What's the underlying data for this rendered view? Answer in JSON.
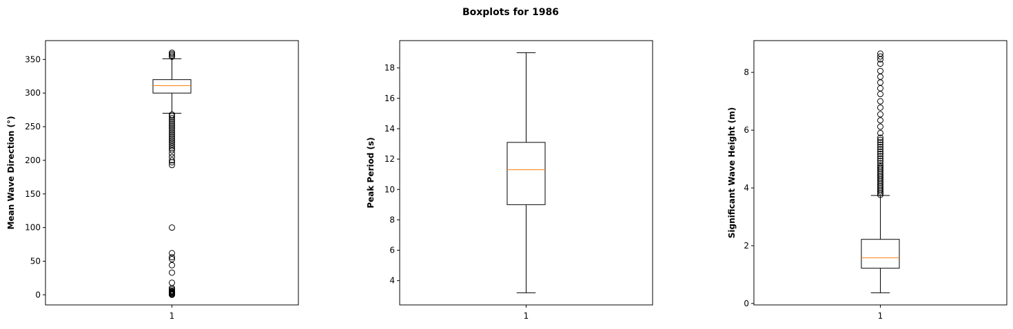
{
  "figure": {
    "title": "Boxplots for 1986"
  },
  "chart_data": [
    {
      "type": "boxplot",
      "ylabel": "Mean Wave Direction (°)",
      "xlabel": "",
      "categories": [
        "1"
      ],
      "ylim": [
        -15,
        378
      ],
      "yticks": [
        0,
        50,
        100,
        150,
        200,
        250,
        300,
        350
      ],
      "grid": false,
      "box": {
        "whisker_low": 270,
        "q1": 300,
        "median": 311,
        "q3": 320,
        "whisker_high": 351
      },
      "fliers": [
        0,
        1,
        2,
        3,
        4,
        5,
        6,
        8,
        10,
        18,
        33,
        44,
        53,
        56,
        62,
        100,
        193,
        197,
        200,
        205,
        210,
        215,
        218,
        221,
        224,
        227,
        230,
        233,
        236,
        239,
        242,
        245,
        248,
        251,
        254,
        257,
        260,
        263,
        266,
        268,
        354,
        356,
        358,
        360
      ]
    },
    {
      "type": "boxplot",
      "ylabel": "Peak Period (s)",
      "xlabel": "",
      "categories": [
        "1"
      ],
      "ylim": [
        2.4,
        19.8
      ],
      "yticks": [
        4,
        6,
        8,
        10,
        12,
        14,
        16,
        18
      ],
      "grid": false,
      "box": {
        "whisker_low": 3.2,
        "q1": 9.0,
        "median": 11.3,
        "q3": 13.1,
        "whisker_high": 19.0
      },
      "fliers": []
    },
    {
      "type": "boxplot",
      "ylabel": "Significant Wave Height (m)",
      "xlabel": "",
      "categories": [
        "1"
      ],
      "ylim": [
        -0.05,
        9.1
      ],
      "yticks": [
        0,
        2,
        4,
        6,
        8
      ],
      "grid": false,
      "box": {
        "whisker_low": 0.37,
        "q1": 1.22,
        "median": 1.58,
        "q3": 2.22,
        "whisker_high": 3.74
      },
      "fliers": [
        3.76,
        3.82,
        3.88,
        3.94,
        4.0,
        4.06,
        4.12,
        4.18,
        4.24,
        4.3,
        4.36,
        4.42,
        4.48,
        4.54,
        4.6,
        4.66,
        4.72,
        4.78,
        4.86,
        4.94,
        5.02,
        5.1,
        5.18,
        5.26,
        5.34,
        5.42,
        5.5,
        5.58,
        5.66,
        5.74,
        5.9,
        6.12,
        6.34,
        6.55,
        6.78,
        7.0,
        7.25,
        7.45,
        7.65,
        7.85,
        8.05,
        8.3,
        8.45,
        8.55,
        8.65
      ]
    }
  ],
  "style": {
    "box_color": "#000000",
    "median_color": "#ff7f0e",
    "flier_edge": "#000000"
  }
}
